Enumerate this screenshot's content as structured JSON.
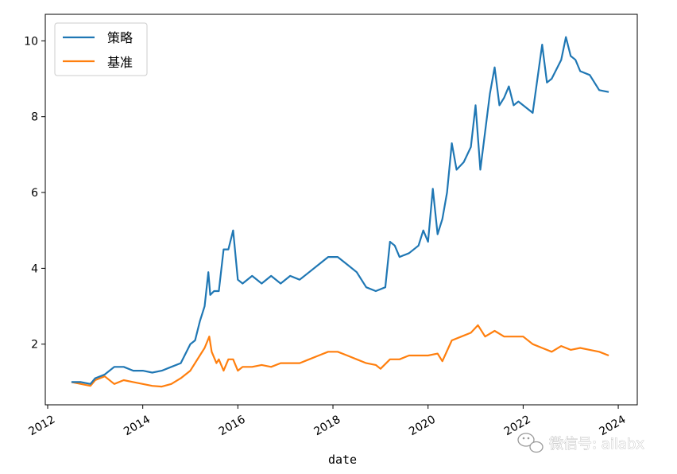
{
  "chart_data": {
    "type": "line",
    "xlabel": "date",
    "ylabel": "",
    "title": "",
    "xlim": [
      2011.95,
      2024.4
    ],
    "ylim": [
      0.4,
      10.7
    ],
    "xticks": [
      2012,
      2014,
      2016,
      2018,
      2020,
      2022,
      2024
    ],
    "xtick_labels": [
      "2012",
      "2014",
      "2016",
      "2018",
      "2020",
      "2022",
      "2024"
    ],
    "yticks": [
      2,
      4,
      6,
      8,
      10
    ],
    "ytick_labels": [
      "2",
      "4",
      "6",
      "8",
      "10"
    ],
    "grid": false,
    "legend_position": "top-left",
    "series": [
      {
        "name": "策略",
        "color": "#1f77b4",
        "x": [
          2012.5,
          2012.7,
          2012.9,
          2013.0,
          2013.2,
          2013.4,
          2013.6,
          2013.8,
          2014.0,
          2014.2,
          2014.4,
          2014.6,
          2014.8,
          2015.0,
          2015.1,
          2015.2,
          2015.3,
          2015.38,
          2015.42,
          2015.5,
          2015.6,
          2015.7,
          2015.8,
          2015.9,
          2016.0,
          2016.1,
          2016.3,
          2016.5,
          2016.7,
          2016.9,
          2017.1,
          2017.3,
          2017.5,
          2017.7,
          2017.9,
          2018.1,
          2018.3,
          2018.5,
          2018.7,
          2018.9,
          2019.1,
          2019.2,
          2019.3,
          2019.4,
          2019.6,
          2019.8,
          2019.9,
          2020.0,
          2020.1,
          2020.2,
          2020.3,
          2020.4,
          2020.5,
          2020.6,
          2020.75,
          2020.9,
          2021.0,
          2021.1,
          2021.2,
          2021.3,
          2021.4,
          2021.5,
          2021.6,
          2021.7,
          2021.8,
          2021.9,
          2022.0,
          2022.2,
          2022.4,
          2022.5,
          2022.6,
          2022.8,
          2022.9,
          2023.0,
          2023.1,
          2023.2,
          2023.4,
          2023.6,
          2023.8
        ],
        "values": [
          1.0,
          1.0,
          0.95,
          1.1,
          1.2,
          1.4,
          1.4,
          1.3,
          1.3,
          1.25,
          1.3,
          1.4,
          1.5,
          2.0,
          2.1,
          2.6,
          3.0,
          3.9,
          3.3,
          3.4,
          3.4,
          4.5,
          4.5,
          5.0,
          3.7,
          3.6,
          3.8,
          3.6,
          3.8,
          3.6,
          3.8,
          3.7,
          3.9,
          4.1,
          4.3,
          4.3,
          4.1,
          3.9,
          3.5,
          3.4,
          3.5,
          4.7,
          4.6,
          4.3,
          4.4,
          4.6,
          5.0,
          4.7,
          6.1,
          4.9,
          5.3,
          6.0,
          7.3,
          6.6,
          6.8,
          7.2,
          8.3,
          6.6,
          7.6,
          8.6,
          9.3,
          8.3,
          8.5,
          8.8,
          8.3,
          8.4,
          8.3,
          8.1,
          9.9,
          8.9,
          9.0,
          9.5,
          10.1,
          9.6,
          9.5,
          9.2,
          9.1,
          8.7,
          8.65
        ]
      },
      {
        "name": "基准",
        "color": "#ff7f0e",
        "x": [
          2012.5,
          2012.7,
          2012.9,
          2013.0,
          2013.2,
          2013.4,
          2013.6,
          2013.8,
          2014.0,
          2014.2,
          2014.4,
          2014.6,
          2014.8,
          2015.0,
          2015.2,
          2015.3,
          2015.4,
          2015.45,
          2015.55,
          2015.6,
          2015.7,
          2015.8,
          2015.9,
          2016.0,
          2016.1,
          2016.3,
          2016.5,
          2016.7,
          2016.9,
          2017.1,
          2017.3,
          2017.5,
          2017.7,
          2017.9,
          2018.1,
          2018.3,
          2018.5,
          2018.7,
          2018.9,
          2019.0,
          2019.2,
          2019.4,
          2019.6,
          2019.8,
          2020.0,
          2020.2,
          2020.3,
          2020.5,
          2020.7,
          2020.9,
          2021.05,
          2021.2,
          2021.4,
          2021.6,
          2021.8,
          2022.0,
          2022.2,
          2022.4,
          2022.6,
          2022.8,
          2023.0,
          2023.2,
          2023.4,
          2023.6,
          2023.8
        ],
        "values": [
          1.0,
          0.95,
          0.9,
          1.05,
          1.15,
          0.95,
          1.05,
          1.0,
          0.95,
          0.9,
          0.88,
          0.95,
          1.1,
          1.3,
          1.7,
          1.9,
          2.2,
          1.8,
          1.5,
          1.6,
          1.3,
          1.6,
          1.6,
          1.3,
          1.4,
          1.4,
          1.45,
          1.4,
          1.5,
          1.5,
          1.5,
          1.6,
          1.7,
          1.8,
          1.8,
          1.7,
          1.6,
          1.5,
          1.45,
          1.35,
          1.6,
          1.6,
          1.7,
          1.7,
          1.7,
          1.75,
          1.55,
          2.1,
          2.2,
          2.3,
          2.5,
          2.2,
          2.35,
          2.2,
          2.2,
          2.2,
          2.0,
          1.9,
          1.8,
          1.95,
          1.85,
          1.9,
          1.85,
          1.8,
          1.7
        ]
      }
    ]
  },
  "watermark": {
    "text": "微信号: ailabx",
    "icon": "wechat-icon"
  }
}
